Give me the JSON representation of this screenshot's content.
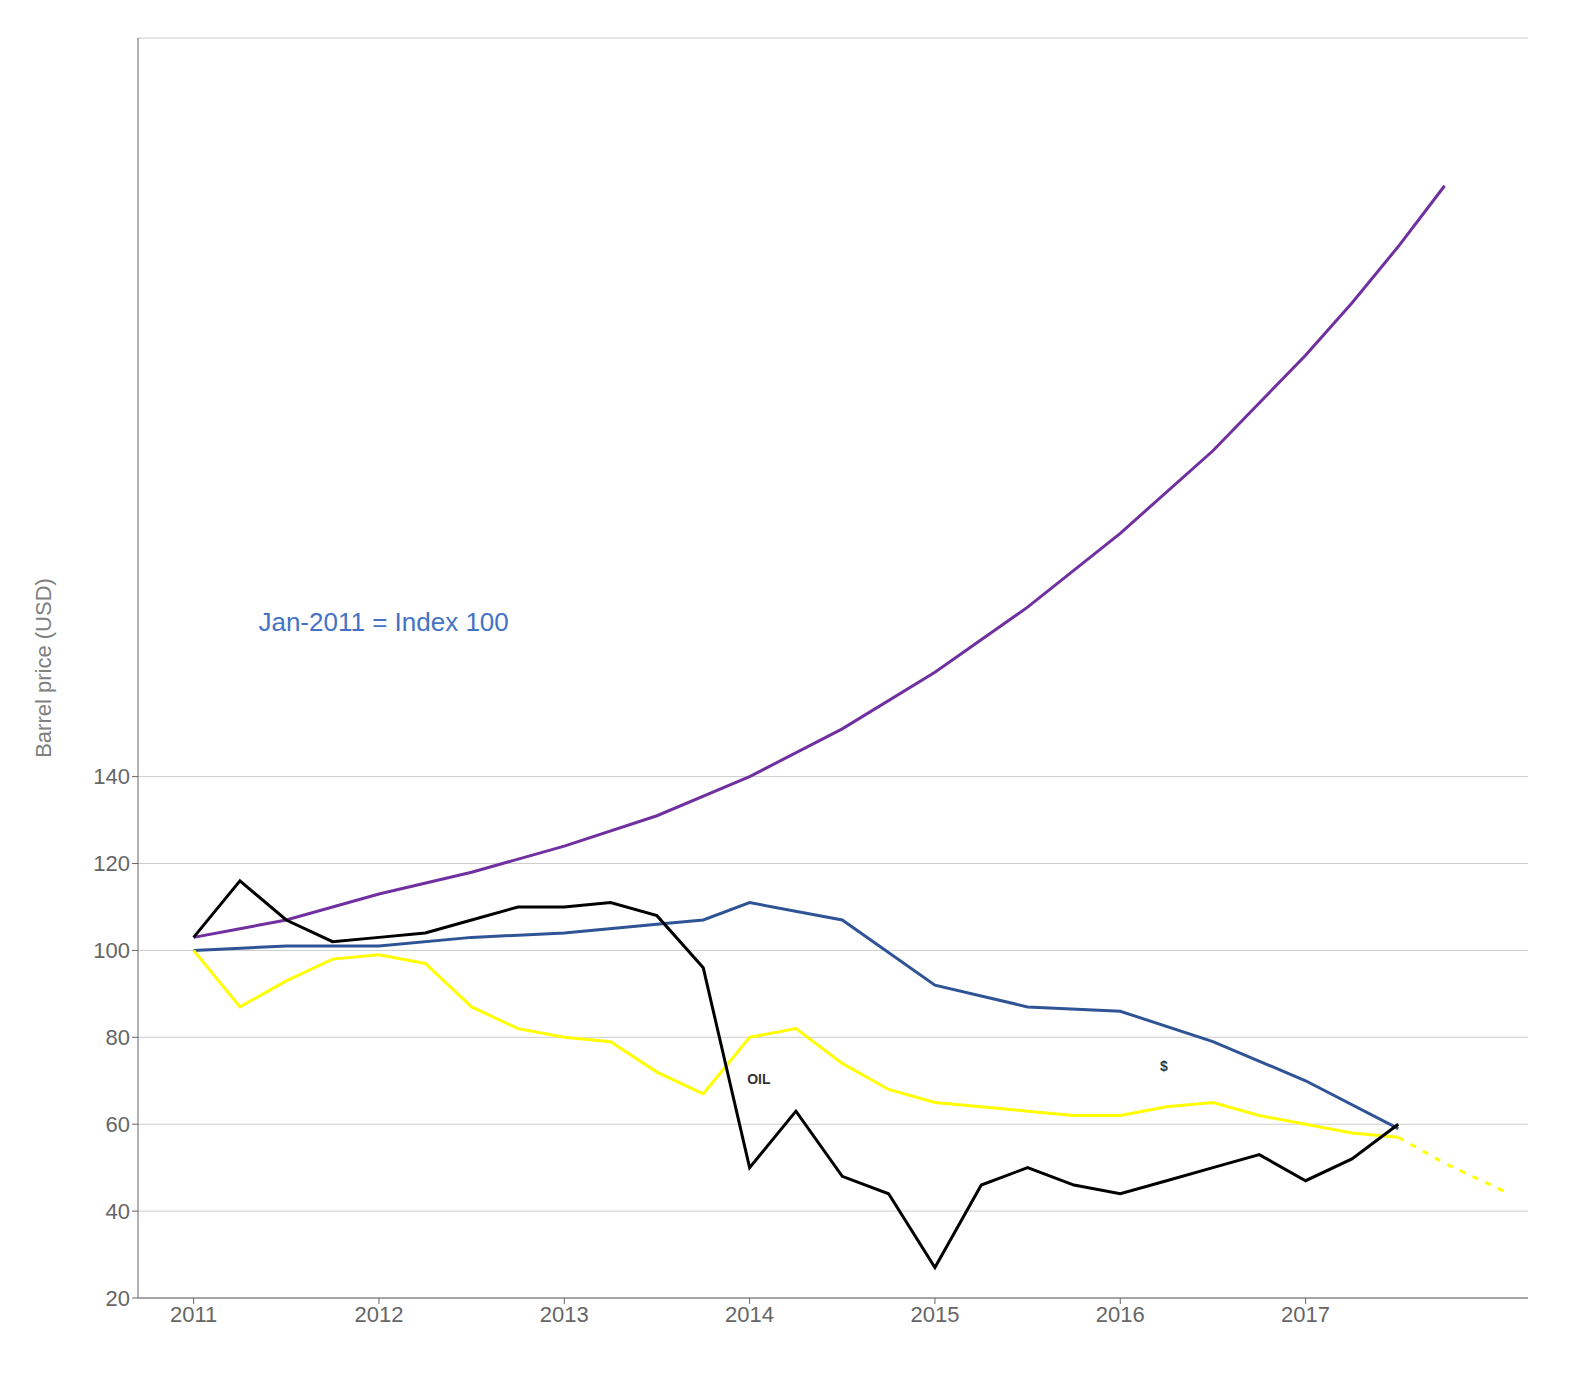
{
  "chart_data": {
    "type": "line",
    "y_label": "Barrel price (USD)",
    "xlim": [
      2010.7,
      2018.2
    ],
    "xticks": [
      2011,
      2012,
      2013,
      2014,
      2015,
      2016,
      2017
    ],
    "ylim": [
      20,
      310
    ],
    "yticks": [
      20,
      40,
      60,
      80,
      100,
      120,
      140
    ],
    "grid": true,
    "series": [
      {
        "color": "#7030A0",
        "x": [
          2011.0,
          2011.25,
          2011.5,
          2011.75,
          2012.0,
          2012.5,
          2013.0,
          2013.5,
          2014.0,
          2014.5,
          2015.0,
          2015.5,
          2016.0,
          2016.5,
          2017.0,
          2017.25,
          2017.5,
          2017.75
        ],
        "values": [
          103,
          105,
          107,
          110,
          113,
          118,
          124,
          131,
          140,
          151,
          164,
          179,
          196,
          215,
          237,
          249,
          262,
          276
        ]
      },
      {
        "color": "#2F5496",
        "x": [
          2011.0,
          2011.5,
          2012.0,
          2012.5,
          2013.0,
          2013.5,
          2013.75,
          2014.0,
          2014.5,
          2015.0,
          2015.5,
          2016.0,
          2016.5,
          2017.0,
          2017.5
        ],
        "values": [
          100,
          101,
          101,
          103,
          104,
          106,
          107,
          111,
          107,
          92,
          87,
          86,
          79,
          70,
          59
        ]
      },
      {
        "color": "#FFFF00",
        "x": [
          2011.0,
          2011.25,
          2011.5,
          2011.75,
          2012.0,
          2012.25,
          2012.5,
          2012.75,
          2013.0,
          2013.25,
          2013.5,
          2013.75,
          2014.0,
          2014.25,
          2014.5,
          2014.75,
          2015.0,
          2015.25,
          2015.5,
          2015.75,
          2016.0,
          2016.25,
          2016.5,
          2016.75,
          2017.0,
          2017.25,
          2017.5
        ],
        "values": [
          100,
          87,
          93,
          98,
          99,
          97,
          87,
          82,
          80,
          79,
          72,
          67,
          80,
          82,
          74,
          68,
          65,
          64,
          63,
          62,
          62,
          64,
          65,
          62,
          60,
          58,
          57
        ]
      },
      {
        "color": "#FFFF00",
        "line_style": "dotted",
        "x": [
          2017.5,
          2017.75,
          2018.1
        ],
        "values": [
          57,
          51,
          44
        ]
      },
      {
        "color": "#000000",
        "x": [
          2011.0,
          2011.25,
          2011.5,
          2011.75,
          2012.0,
          2012.25,
          2012.5,
          2012.75,
          2013.0,
          2013.25,
          2013.5,
          2013.75,
          2014.0,
          2014.25,
          2014.5,
          2014.75,
          2015.0,
          2015.25,
          2015.5,
          2015.75,
          2016.0,
          2016.25,
          2016.5,
          2016.75,
          2017.0,
          2017.25,
          2017.5
        ],
        "values": [
          103,
          116,
          107,
          102,
          103,
          104,
          107,
          110,
          110,
          111,
          108,
          96,
          50,
          63,
          48,
          44,
          27,
          46,
          50,
          46,
          44,
          47,
          50,
          53,
          47,
          52,
          60
        ]
      }
    ],
    "annotations": [
      {
        "text": "Jan-2011 = Index 100",
        "x": 2011.35,
        "y": 175,
        "color": "#4472C4"
      },
      {
        "text": "OIL",
        "x": 2014.05,
        "y": 70
      },
      {
        "text": "$",
        "x": 2016.235,
        "y": 73
      }
    ]
  }
}
